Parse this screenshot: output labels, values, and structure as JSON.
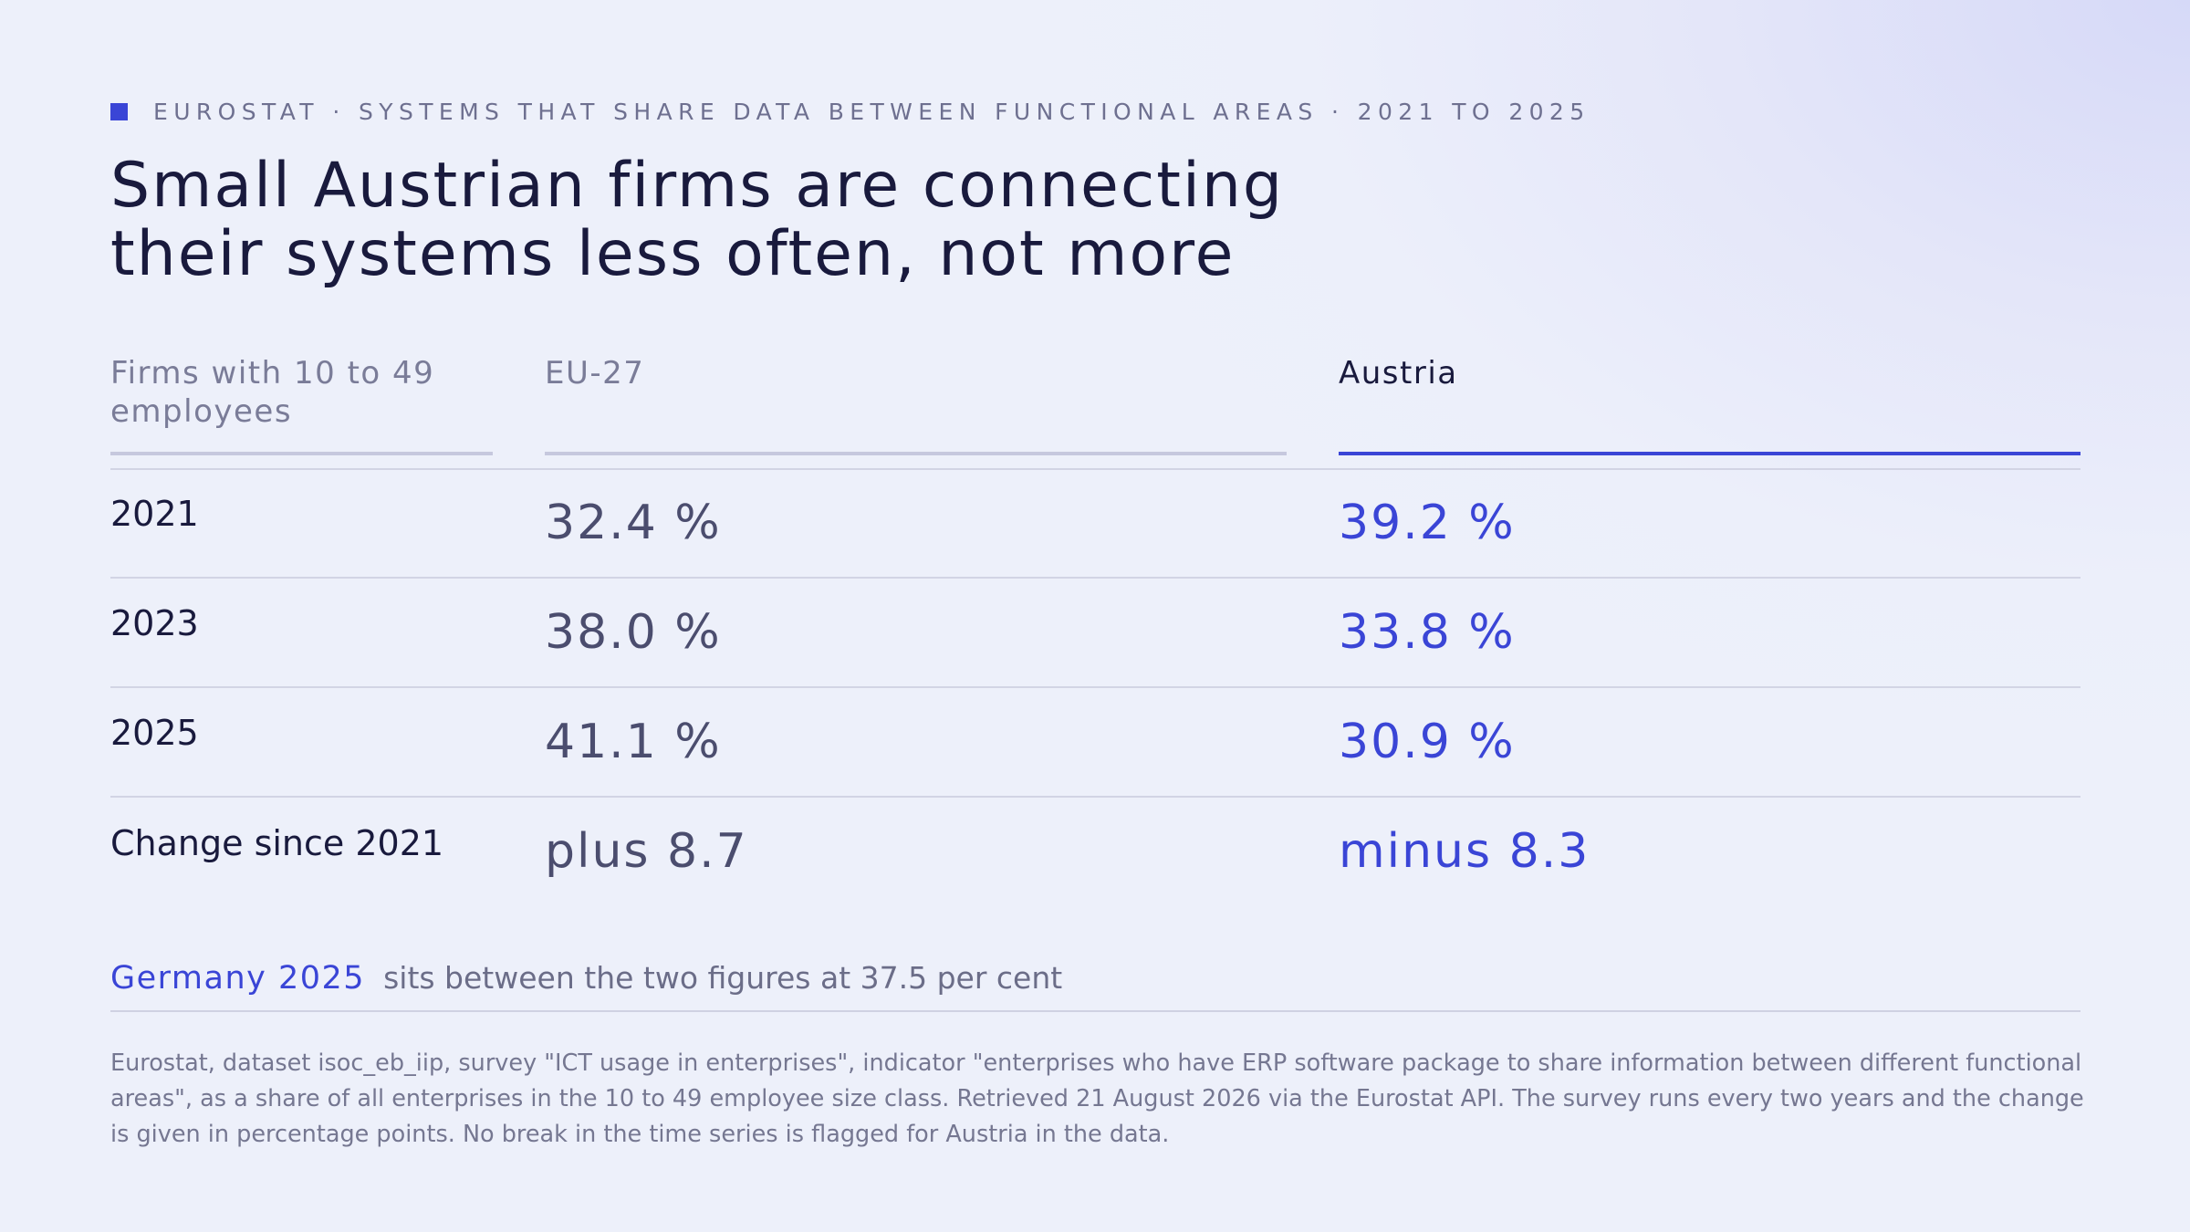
{
  "eyebrow": {
    "text": "EUROSTAT · SYSTEMS THAT SHARE DATA BETWEEN FUNCTIONAL AREAS · 2021 TO 2025",
    "accent_color": "#3a45d6"
  },
  "title": {
    "line1": "Small Austrian firms are connecting",
    "line2": "their systems less often, not more"
  },
  "table": {
    "header": {
      "label": "Firms with 10 to 49 employees",
      "eu": "EU-27",
      "at": "Austria"
    },
    "rows": [
      {
        "label": "2021",
        "eu": "32.4 %",
        "at": "39.2 %"
      },
      {
        "label": "2023",
        "eu": "38.0 %",
        "at": "33.8 %"
      },
      {
        "label": "2025",
        "eu": "41.1 %",
        "at": "30.9 %"
      },
      {
        "label": "Change since 2021",
        "eu": "plus 8.7",
        "at": "minus 8.3"
      }
    ]
  },
  "note": {
    "emphasis": "Germany 2025",
    "text": "sits between the two figures at 37.5 per cent"
  },
  "source": "Eurostat, dataset isoc_eb_iip, survey \"ICT usage in enterprises\", indicator \"enterprises who have ERP software package to share information between different functional areas\", as a share of all enterprises in the 10 to 49 employee size class. Retrieved 21 August 2026 via the Eurostat API. The survey runs every two years and the change is given in percentage points. No break in the time series is flagged for Austria in the data.",
  "colors": {
    "accent": "#3a45d6",
    "ink": "#191a3d",
    "muted": "#4b4d6e"
  },
  "chart_data": {
    "type": "table",
    "title": "Small Austrian firms are connecting their systems less often, not more",
    "columns": [
      "Firms with 10 to 49 employees",
      "EU-27",
      "Austria"
    ],
    "categories": [
      "2021",
      "2023",
      "2025"
    ],
    "series": [
      {
        "name": "EU-27",
        "values": [
          32.4,
          38.0,
          41.1
        ],
        "change_since_2021": 8.7
      },
      {
        "name": "Austria",
        "values": [
          39.2,
          33.8,
          30.9
        ],
        "change_since_2021": -8.3
      }
    ],
    "annotations": [
      {
        "label": "Germany 2025",
        "value": 37.5
      }
    ]
  }
}
